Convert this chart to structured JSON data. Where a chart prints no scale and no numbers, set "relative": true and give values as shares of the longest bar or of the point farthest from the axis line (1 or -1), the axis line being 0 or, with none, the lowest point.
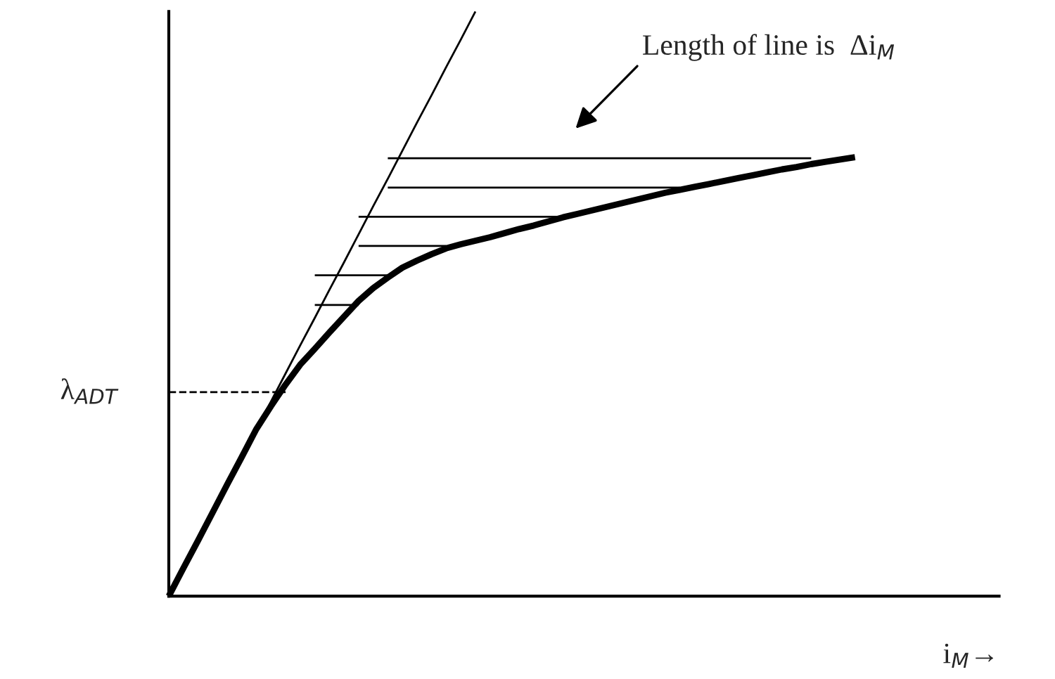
{
  "chart_data": {
    "type": "line",
    "relative": true,
    "xlabel": "i$_{M}$→",
    "categories": [
      null,
      null,
      null,
      null,
      null,
      null,
      null,
      null,
      null,
      null,
      null,
      null,
      null,
      null,
      null,
      null,
      null,
      null,
      null,
      null,
      null,
      null,
      null,
      null,
      null,
      null,
      null,
      null,
      null,
      null,
      null,
      null,
      null,
      null,
      null,
      null,
      null,
      null,
      null,
      null,
      null,
      null,
      null,
      null,
      null,
      null,
      null,
      null
    ],
    "annotations": [
      "Length of line is  Δi$_{M}$",
      "λ$_{ADT}$"
    ],
    "series": [
      {
        "color": "#000000",
        "values": [
          0,
          0.048,
          0.095,
          0.143,
          0.191,
          0.238,
          0.286,
          0.325,
          0.362,
          0.396,
          0.423,
          0.451,
          0.478,
          0.505,
          0.527,
          0.545,
          0.562,
          0.574,
          0.585,
          0.595,
          0.602,
          0.608,
          0.614,
          0.621,
          0.628,
          0.634,
          0.641,
          0.648,
          0.654,
          0.66,
          0.666,
          0.672,
          0.678,
          0.684,
          0.69,
          0.695,
          0.7,
          0.705,
          0.71,
          0.715,
          0.72,
          0.725,
          0.73,
          0.734,
          0.739,
          0.743,
          0.747,
          0.751
        ]
      },
      {
        "color": "#000000",
        "values": [
          0,
          0.048,
          0.095,
          0.143,
          0.19,
          0.238,
          0.286,
          0.333,
          0.381,
          0.429,
          0.476,
          0.524,
          0.571,
          0.619,
          0.667,
          0.714,
          0.762,
          0.81,
          0.857,
          0.905,
          0.952,
          1.0,
          null,
          null,
          null,
          null,
          null,
          null,
          null,
          null,
          null,
          null,
          null,
          null,
          null,
          null,
          null,
          null,
          null,
          null,
          null,
          null,
          null,
          null,
          null,
          null,
          null,
          null
        ]
      },
      {
        "color": "#000000",
        "values": [
          null,
          null,
          null,
          null,
          null,
          null,
          null,
          null,
          null,
          null,
          null,
          null,
          null,
          null,
          null,
          0.749,
          0.749,
          0.749,
          0.749,
          0.749,
          0.749,
          0.749,
          0.749,
          0.749,
          0.749,
          0.749,
          0.749,
          0.749,
          0.749,
          0.749,
          0.749,
          0.749,
          0.749,
          0.749,
          0.749,
          0.749,
          0.749,
          0.749,
          0.749,
          0.749,
          0.749,
          0.749,
          0.749,
          0.749,
          0.749,
          null,
          null,
          null
        ]
      },
      {
        "color": "#000000",
        "values": [
          null,
          null,
          null,
          null,
          null,
          null,
          null,
          null,
          null,
          null,
          null,
          null,
          null,
          null,
          null,
          0.699,
          0.699,
          0.699,
          0.699,
          0.699,
          0.699,
          0.699,
          0.699,
          0.699,
          0.699,
          0.699,
          0.699,
          0.699,
          0.699,
          0.699,
          0.699,
          0.699,
          0.699,
          0.699,
          0.699,
          0.699,
          null,
          null,
          null,
          null,
          null,
          null,
          null,
          null,
          null,
          null,
          null,
          null
        ]
      },
      {
        "color": "#000000",
        "values": [
          null,
          null,
          null,
          null,
          null,
          null,
          null,
          null,
          null,
          null,
          null,
          null,
          null,
          0.649,
          0.649,
          0.649,
          0.649,
          0.649,
          0.649,
          0.649,
          0.649,
          0.649,
          0.649,
          0.649,
          0.649,
          0.649,
          0.649,
          0.649,
          null,
          null,
          null,
          null,
          null,
          null,
          null,
          null,
          null,
          null,
          null,
          null,
          null,
          null,
          null,
          null,
          null,
          null,
          null,
          null
        ]
      },
      {
        "color": "#000000",
        "values": [
          null,
          null,
          null,
          null,
          null,
          null,
          null,
          null,
          null,
          null,
          null,
          null,
          null,
          0.599,
          0.599,
          0.599,
          0.599,
          0.599,
          0.599,
          0.599,
          null,
          null,
          null,
          null,
          null,
          null,
          null,
          null,
          null,
          null,
          null,
          null,
          null,
          null,
          null,
          null,
          null,
          null,
          null,
          null,
          null,
          null,
          null,
          null,
          null,
          null,
          null,
          null
        ]
      },
      {
        "color": "#000000",
        "values": [
          null,
          null,
          null,
          null,
          null,
          null,
          null,
          null,
          null,
          null,
          0.549,
          0.549,
          0.549,
          0.549,
          0.549,
          0.549,
          null,
          null,
          null,
          null,
          null,
          null,
          null,
          null,
          null,
          null,
          null,
          null,
          null,
          null,
          null,
          null,
          null,
          null,
          null,
          null,
          null,
          null,
          null,
          null,
          null,
          null,
          null,
          null,
          null,
          null,
          null,
          null
        ]
      },
      {
        "color": "#000000",
        "values": [
          null,
          null,
          null,
          null,
          null,
          null,
          null,
          null,
          null,
          null,
          0.498,
          0.498,
          0.498,
          0.498,
          null,
          null,
          null,
          null,
          null,
          null,
          null,
          null,
          null,
          null,
          null,
          null,
          null,
          null,
          null,
          null,
          null,
          null,
          null,
          null,
          null,
          null,
          null,
          null,
          null,
          null,
          null,
          null,
          null,
          null,
          null,
          null,
          null,
          null
        ]
      },
      {
        "color": "#000000",
        "line_style": "dashed",
        "values": [
          0.349,
          0.349,
          0.349,
          0.349,
          0.349,
          0.349,
          0.349,
          0.349,
          0.349,
          null,
          null,
          null,
          null,
          null,
          null,
          null,
          null,
          null,
          null,
          null,
          null,
          null,
          null,
          null,
          null,
          null,
          null,
          null,
          null,
          null,
          null,
          null,
          null,
          null,
          null,
          null,
          null,
          null,
          null,
          null,
          null,
          null,
          null,
          null,
          null,
          null,
          null,
          null
        ]
      }
    ]
  }
}
